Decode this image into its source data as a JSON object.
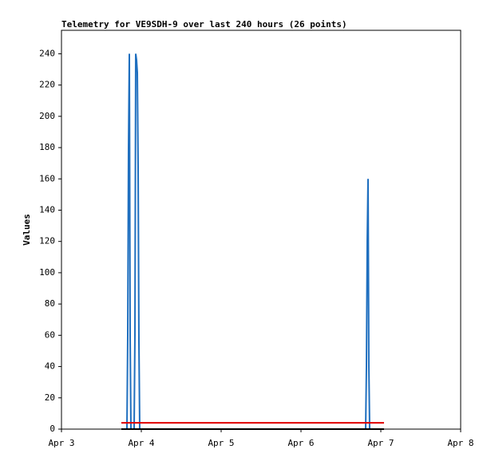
{
  "chart_data": {
    "type": "line",
    "title": "Telemetry for VE9SDH-9 over last 240 hours (26 points)",
    "y_label": "Values",
    "series": [
      {
        "color": "#1f6fbf",
        "x": [
          3.75,
          3.82,
          3.83,
          3.84,
          3.85,
          3.86,
          3.87,
          3.89,
          3.91,
          3.92,
          3.93,
          3.94,
          3.95,
          3.96,
          3.97,
          3.98,
          4.0,
          5.23,
          6.78,
          6.81,
          6.82,
          6.83,
          6.84,
          6.85,
          6.86,
          7.03
        ],
        "values": [
          0,
          0,
          60,
          180,
          240,
          60,
          0,
          0,
          0,
          60,
          240,
          236,
          228,
          168,
          56,
          0,
          0,
          0,
          0,
          0,
          40,
          120,
          160,
          40,
          0,
          0
        ]
      },
      {
        "color": "#e00000",
        "x": [
          3.75,
          7.04
        ],
        "values": [
          4,
          4
        ]
      },
      {
        "color": "#000000",
        "x": [
          3.75,
          7.04
        ],
        "values": [
          0,
          0
        ]
      }
    ],
    "xlim": [
      3,
      8
    ],
    "xticks": [
      {
        "value": 3,
        "label": "Apr 3"
      },
      {
        "value": 4,
        "label": "Apr 4"
      },
      {
        "value": 5,
        "label": "Apr 5"
      },
      {
        "value": 6,
        "label": "Apr 6"
      },
      {
        "value": 7,
        "label": "Apr 7"
      },
      {
        "value": 8,
        "label": "Apr 8"
      }
    ],
    "ylim": [
      0,
      255
    ],
    "yticks": [
      0,
      20,
      40,
      60,
      80,
      100,
      120,
      140,
      160,
      180,
      200,
      220,
      240
    ]
  }
}
